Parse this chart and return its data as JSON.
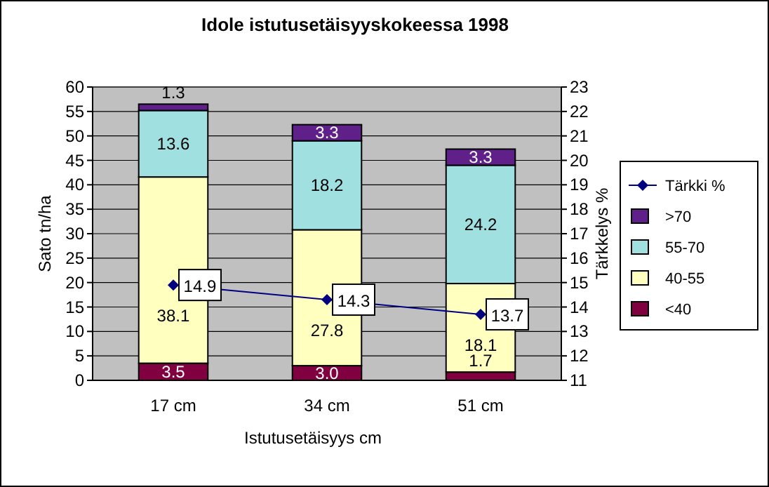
{
  "chart_data": {
    "type": "bar",
    "title": "Idole istutusetäisyyskokeessa 1998",
    "xlabel": "Istutusetäisyys cm",
    "ylabel": "Sato tn/ha",
    "y2label": "Tärkkelys %",
    "categories": [
      "17 cm",
      "34 cm",
      "51 cm"
    ],
    "stacked": true,
    "grid": "y",
    "legend": "right",
    "ylim": [
      0,
      60
    ],
    "yticks": [
      0,
      5,
      10,
      15,
      20,
      25,
      30,
      35,
      40,
      45,
      50,
      55,
      60
    ],
    "y2lim": [
      11,
      23
    ],
    "y2ticks": [
      11,
      12,
      13,
      14,
      15,
      16,
      17,
      18,
      19,
      20,
      21,
      22,
      23
    ],
    "series": [
      {
        "name": "<40",
        "color": "#800040",
        "values": [
          3.5,
          3.0,
          1.7
        ],
        "value_labels": [
          "3.5",
          "3.0",
          "1.7"
        ]
      },
      {
        "name": "40-55",
        "color": "#ffffc0",
        "values": [
          38.1,
          27.8,
          18.1
        ],
        "value_labels": [
          "38.1",
          "27.8",
          "18.1"
        ]
      },
      {
        "name": "55-70",
        "color": "#a0e0e0",
        "values": [
          13.6,
          18.2,
          24.2
        ],
        "value_labels": [
          "13.6",
          "18.2",
          "24.2"
        ]
      },
      {
        "name": ">70",
        "color": "#60208a",
        "values": [
          1.3,
          3.3,
          3.3
        ],
        "value_labels": [
          "1.3",
          "3.3",
          "3.3"
        ]
      },
      {
        "name": "Tärkki %",
        "type": "line",
        "axis": "y2",
        "color": "#000080",
        "marker": "diamond",
        "values": [
          14.9,
          14.3,
          13.7
        ],
        "value_labels": [
          "14.9",
          "14.3",
          "13.7"
        ]
      }
    ]
  }
}
